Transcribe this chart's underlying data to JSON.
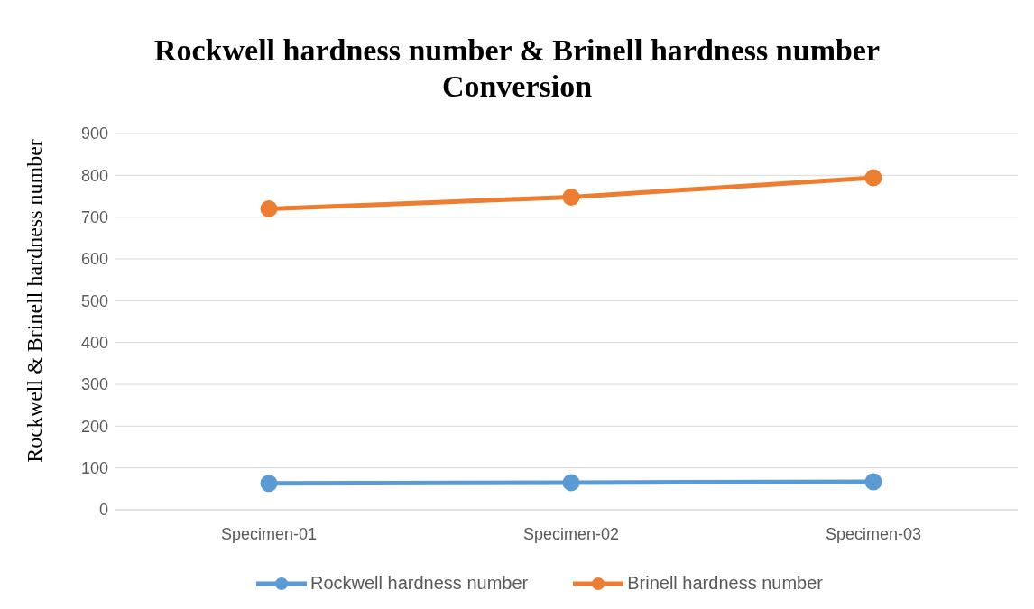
{
  "chart_data": {
    "type": "line",
    "title": "Rockwell hardness number & Brinell hardness number Conversion",
    "ylabel": "Rockwell & Brinell hardness number",
    "categories": [
      "Specimen-01",
      "Specimen-02",
      "Specimen-03"
    ],
    "series": [
      {
        "name": "Rockwell hardness number",
        "color": "#5b9bd5",
        "values": [
          63,
          65,
          67
        ]
      },
      {
        "name": "Brinell hardness number",
        "color": "#ed7d31",
        "values": [
          720,
          748,
          794
        ]
      }
    ],
    "ylim": [
      0,
      900
    ],
    "yticks": [
      0,
      100,
      200,
      300,
      400,
      500,
      600,
      700,
      800,
      900
    ],
    "grid": "y",
    "legend": "bottom",
    "marker": "circle",
    "line_style": "solid"
  }
}
